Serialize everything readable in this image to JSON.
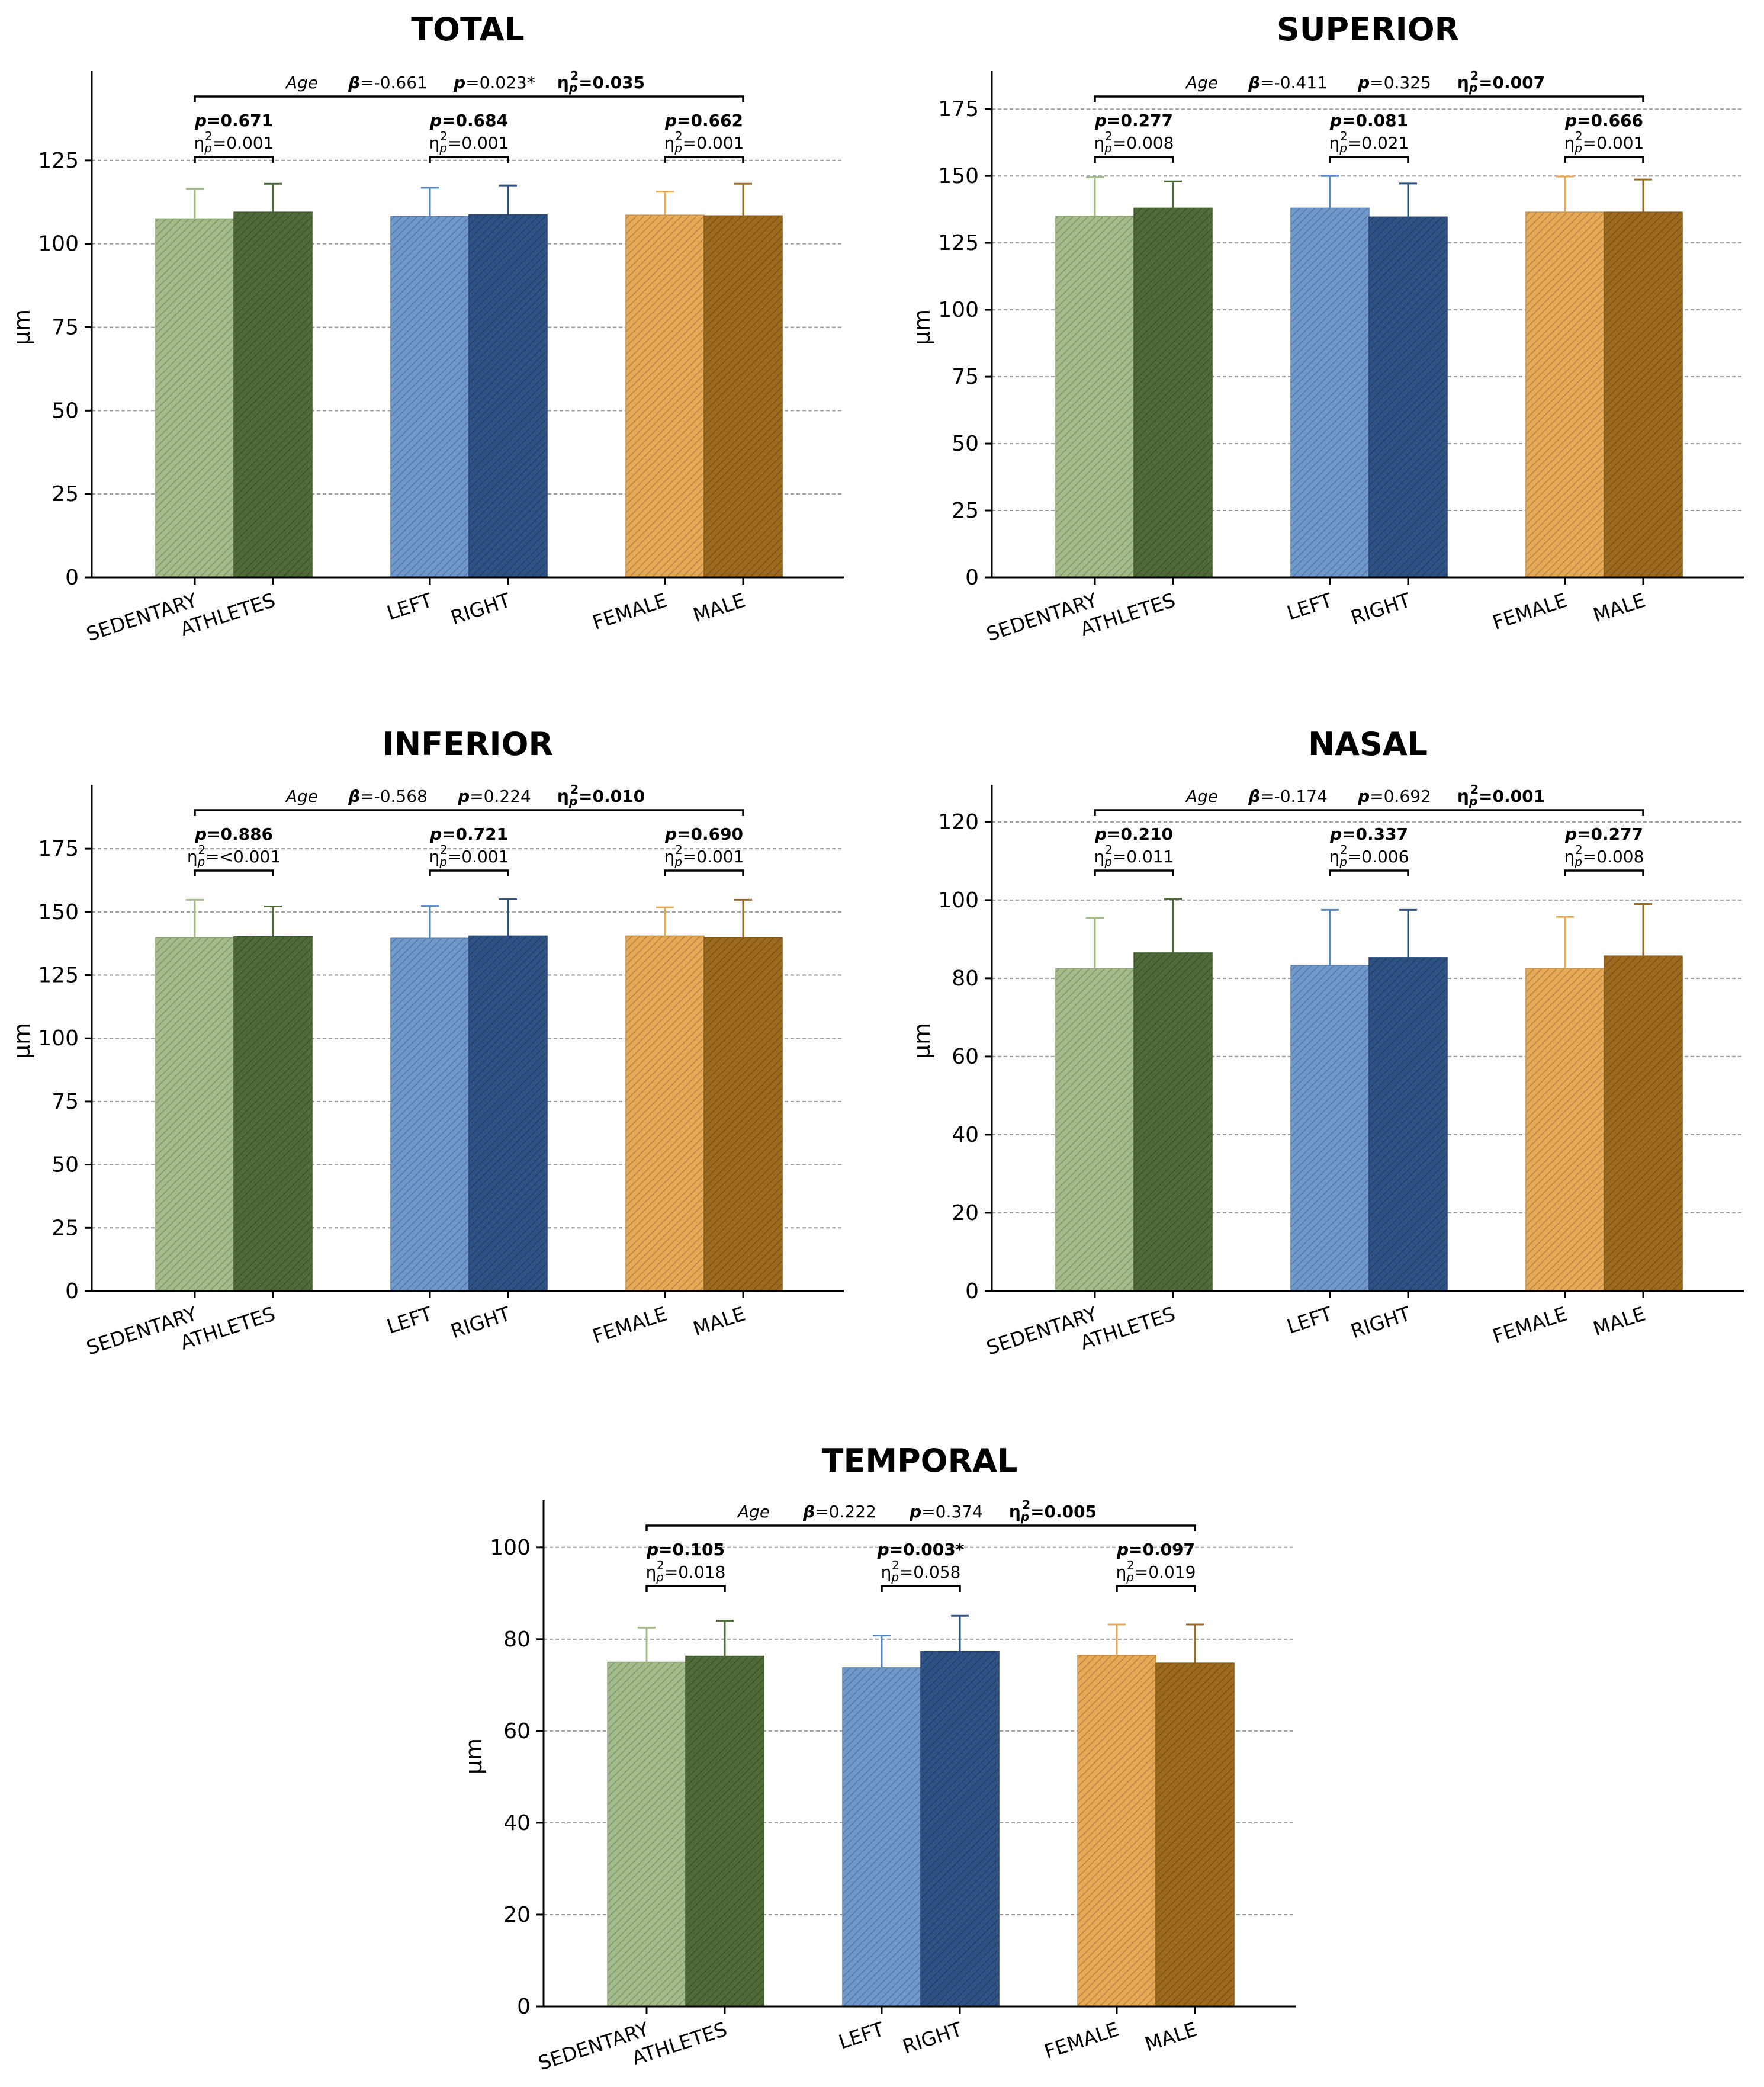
{
  "figure": {
    "y_axis_unit": "µm",
    "categories": [
      "SEDENTARY",
      "ATHLETES",
      "LEFT",
      "RIGHT",
      "FEMALE",
      "MALE"
    ],
    "group_pairs": [
      [
        "SEDENTARY",
        "ATHLETES"
      ],
      [
        "LEFT",
        "RIGHT"
      ],
      [
        "FEMALE",
        "MALE"
      ]
    ],
    "bar_colors": [
      "#a4bc8a",
      "#4f6b3a",
      "#6f99cc",
      "#2e5283",
      "#e6a955",
      "#9c6a1e"
    ],
    "errorbar_colors": [
      "#a4bc8a",
      "#4f6b3a",
      "#5a86bf",
      "#2e5283",
      "#e6a955",
      "#9c6a1e"
    ],
    "eta_symbol": "η",
    "eta_sub": "p",
    "eta_sup": "2",
    "beta_symbol": "β",
    "p_symbol": "p",
    "age_label": "Age"
  },
  "chart_data": [
    {
      "type": "bar",
      "title": "TOTAL",
      "categories": [
        "SEDENTARY",
        "ATHLETES",
        "LEFT",
        "RIGHT",
        "FEMALE",
        "MALE"
      ],
      "values": [
        107.5,
        109.5,
        108.2,
        108.7,
        108.6,
        108.4
      ],
      "errors": [
        9.0,
        8.5,
        8.6,
        8.8,
        7.0,
        9.6
      ],
      "ylim": [
        0,
        150
      ],
      "yticks": [
        0,
        25,
        50,
        75,
        100,
        125
      ],
      "ylabel": "µm",
      "age": {
        "beta": "=-0.661",
        "p": "=0.023*",
        "eta": "=0.035"
      },
      "comparisons": [
        {
          "p": "=0.671",
          "eta": "=0.001"
        },
        {
          "p": "=0.684",
          "eta": "=0.001"
        },
        {
          "p": "=0.662",
          "eta": "=0.001"
        }
      ]
    },
    {
      "type": "bar",
      "title": "SUPERIOR",
      "categories": [
        "SEDENTARY",
        "ATHLETES",
        "LEFT",
        "RIGHT",
        "FEMALE",
        "MALE"
      ],
      "values": [
        135.0,
        138.0,
        138.0,
        134.7,
        136.5,
        136.5
      ],
      "errors": [
        14.5,
        10.0,
        12.0,
        12.5,
        13.3,
        12.2
      ],
      "ylim": [
        0,
        187
      ],
      "yticks": [
        0,
        25,
        50,
        75,
        100,
        125,
        150,
        175
      ],
      "ylabel": "µm",
      "age": {
        "beta": "=-0.411",
        "p": "=0.325",
        "eta": "=0.007"
      },
      "comparisons": [
        {
          "p": "=0.277",
          "eta": "=0.008"
        },
        {
          "p": "=0.081",
          "eta": "=0.021"
        },
        {
          "p": "=0.666",
          "eta": "=0.001"
        }
      ]
    },
    {
      "type": "bar",
      "title": "INFERIOR",
      "categories": [
        "SEDENTARY",
        "ATHLETES",
        "LEFT",
        "RIGHT",
        "FEMALE",
        "MALE"
      ],
      "values": [
        139.8,
        140.2,
        139.6,
        140.5,
        140.5,
        139.8
      ],
      "errors": [
        15.0,
        12.0,
        12.8,
        14.5,
        11.3,
        15.0
      ],
      "ylim": [
        0,
        198
      ],
      "yticks": [
        0,
        25,
        50,
        75,
        100,
        125,
        150,
        175
      ],
      "ylabel": "µm",
      "age": {
        "beta": "=-0.568",
        "p": "=0.224",
        "eta": "=0.010"
      },
      "comparisons": [
        {
          "p": "=0.886",
          "eta": "=<0.001"
        },
        {
          "p": "=0.721",
          "eta": "=0.001"
        },
        {
          "p": "=0.690",
          "eta": "=0.001"
        }
      ]
    },
    {
      "type": "bar",
      "title": "NASAL",
      "categories": [
        "SEDENTARY",
        "ATHLETES",
        "LEFT",
        "RIGHT",
        "FEMALE",
        "MALE"
      ],
      "values": [
        82.5,
        86.5,
        83.3,
        85.3,
        82.5,
        85.7
      ],
      "errors": [
        13.0,
        13.8,
        14.2,
        12.2,
        13.2,
        13.3
      ],
      "ylim": [
        0,
        128
      ],
      "yticks": [
        0,
        20,
        40,
        60,
        80,
        100,
        120
      ],
      "ylabel": "µm",
      "age": {
        "beta": "=-0.174",
        "p": "=0.692",
        "eta": "=0.001"
      },
      "comparisons": [
        {
          "p": "=0.210",
          "eta": "=0.011"
        },
        {
          "p": "=0.337",
          "eta": "=0.006"
        },
        {
          "p": "=0.277",
          "eta": "=0.008"
        }
      ]
    },
    {
      "type": "bar",
      "title": "TEMPORAL",
      "categories": [
        "SEDENTARY",
        "ATHLETES",
        "LEFT",
        "RIGHT",
        "FEMALE",
        "MALE"
      ],
      "values": [
        75.0,
        76.3,
        73.8,
        77.3,
        76.5,
        74.8
      ],
      "errors": [
        7.5,
        7.7,
        7.0,
        7.8,
        6.7,
        8.4
      ],
      "ylim": [
        0,
        109
      ],
      "yticks": [
        0,
        20,
        40,
        60,
        80,
        100
      ],
      "ylabel": "µm",
      "age": {
        "beta": "=0.222",
        "p": "=0.374",
        "eta": "=0.005"
      },
      "comparisons": [
        {
          "p": "=0.105",
          "eta": "=0.018"
        },
        {
          "p": "=0.003*",
          "eta": "=0.058"
        },
        {
          "p": "=0.097",
          "eta": "=0.019"
        }
      ]
    }
  ]
}
